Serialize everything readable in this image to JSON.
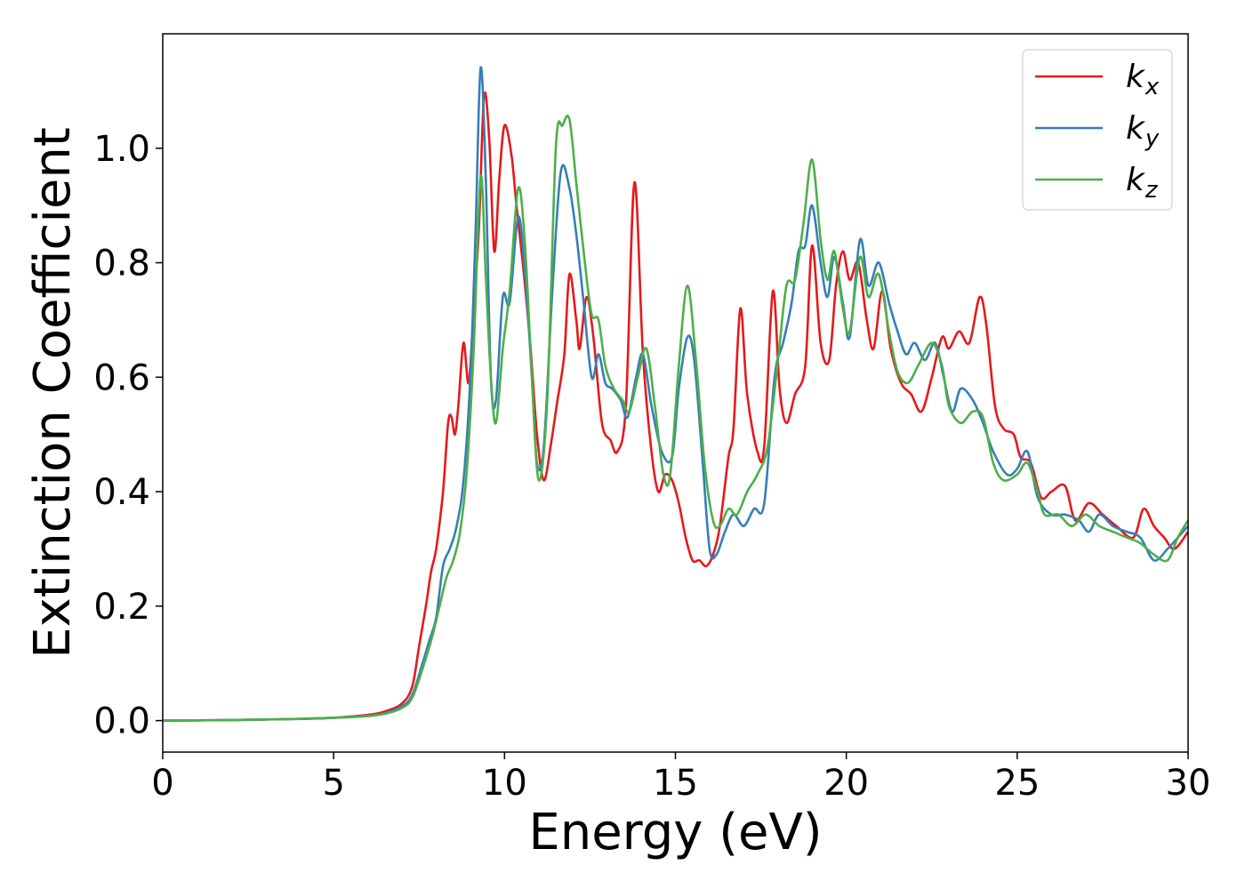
{
  "chart_data": {
    "type": "line",
    "xlabel": "Energy (eV)",
    "ylabel": "Extinction Coefficient",
    "xlim": [
      0,
      30
    ],
    "ylim": [
      -0.055,
      1.2
    ],
    "x_ticks": [
      "0",
      "5",
      "10",
      "15",
      "20",
      "25",
      "30"
    ],
    "x_tick_values": [
      0,
      5,
      10,
      15,
      20,
      25,
      30
    ],
    "y_ticks": [
      "0.0",
      "0.2",
      "0.4",
      "0.6",
      "0.8",
      "1.0"
    ],
    "y_tick_values": [
      0.0,
      0.2,
      0.4,
      0.6,
      0.8,
      1.0
    ],
    "grid": false,
    "legend_placement": "top-right",
    "series": [
      {
        "name": "k",
        "subscript": "x",
        "color": "#e41a1c",
        "points": [
          [
            0,
            0.0
          ],
          [
            1,
            0.0005
          ],
          [
            2,
            0.001
          ],
          [
            3,
            0.002
          ],
          [
            4,
            0.003
          ],
          [
            5,
            0.005
          ],
          [
            6,
            0.01
          ],
          [
            6.5,
            0.016
          ],
          [
            7,
            0.03
          ],
          [
            7.3,
            0.06
          ],
          [
            7.5,
            0.13
          ],
          [
            7.7,
            0.2
          ],
          [
            7.85,
            0.26
          ],
          [
            8.0,
            0.3
          ],
          [
            8.2,
            0.4
          ],
          [
            8.35,
            0.52
          ],
          [
            8.45,
            0.53
          ],
          [
            8.55,
            0.5
          ],
          [
            8.65,
            0.55
          ],
          [
            8.8,
            0.66
          ],
          [
            8.95,
            0.59
          ],
          [
            9.1,
            0.72
          ],
          [
            9.25,
            0.86
          ],
          [
            9.4,
            1.09
          ],
          [
            9.55,
            1.02
          ],
          [
            9.7,
            0.82
          ],
          [
            9.85,
            0.95
          ],
          [
            10.0,
            1.04
          ],
          [
            10.2,
            0.99
          ],
          [
            10.35,
            0.9
          ],
          [
            10.55,
            0.79
          ],
          [
            10.75,
            0.66
          ],
          [
            10.95,
            0.5
          ],
          [
            11.15,
            0.42
          ],
          [
            11.35,
            0.48
          ],
          [
            11.55,
            0.56
          ],
          [
            11.75,
            0.64
          ],
          [
            11.9,
            0.78
          ],
          [
            12.1,
            0.7
          ],
          [
            12.2,
            0.65
          ],
          [
            12.4,
            0.74
          ],
          [
            12.6,
            0.67
          ],
          [
            12.85,
            0.52
          ],
          [
            13.1,
            0.49
          ],
          [
            13.3,
            0.47
          ],
          [
            13.55,
            0.55
          ],
          [
            13.8,
            0.94
          ],
          [
            14.05,
            0.64
          ],
          [
            14.3,
            0.47
          ],
          [
            14.5,
            0.4
          ],
          [
            14.7,
            0.43
          ],
          [
            14.9,
            0.42
          ],
          [
            15.1,
            0.38
          ],
          [
            15.3,
            0.32
          ],
          [
            15.5,
            0.28
          ],
          [
            15.7,
            0.28
          ],
          [
            15.9,
            0.27
          ],
          [
            16.1,
            0.29
          ],
          [
            16.3,
            0.34
          ],
          [
            16.55,
            0.46
          ],
          [
            16.7,
            0.51
          ],
          [
            16.9,
            0.72
          ],
          [
            17.1,
            0.57
          ],
          [
            17.4,
            0.47
          ],
          [
            17.6,
            0.48
          ],
          [
            17.85,
            0.75
          ],
          [
            18.05,
            0.58
          ],
          [
            18.25,
            0.52
          ],
          [
            18.5,
            0.57
          ],
          [
            18.8,
            0.62
          ],
          [
            19.0,
            0.83
          ],
          [
            19.25,
            0.66
          ],
          [
            19.5,
            0.63
          ],
          [
            19.7,
            0.76
          ],
          [
            19.9,
            0.82
          ],
          [
            20.1,
            0.77
          ],
          [
            20.35,
            0.8
          ],
          [
            20.6,
            0.7
          ],
          [
            20.8,
            0.65
          ],
          [
            21.05,
            0.75
          ],
          [
            21.3,
            0.65
          ],
          [
            21.6,
            0.59
          ],
          [
            21.9,
            0.57
          ],
          [
            22.2,
            0.54
          ],
          [
            22.5,
            0.6
          ],
          [
            22.8,
            0.67
          ],
          [
            23.0,
            0.65
          ],
          [
            23.3,
            0.68
          ],
          [
            23.6,
            0.66
          ],
          [
            23.9,
            0.74
          ],
          [
            24.1,
            0.69
          ],
          [
            24.35,
            0.55
          ],
          [
            24.6,
            0.51
          ],
          [
            24.9,
            0.5
          ],
          [
            25.1,
            0.46
          ],
          [
            25.4,
            0.45
          ],
          [
            25.7,
            0.39
          ],
          [
            26.0,
            0.4
          ],
          [
            26.4,
            0.41
          ],
          [
            26.7,
            0.35
          ],
          [
            27.1,
            0.38
          ],
          [
            27.5,
            0.36
          ],
          [
            27.9,
            0.34
          ],
          [
            28.4,
            0.32
          ],
          [
            28.7,
            0.37
          ],
          [
            29.0,
            0.34
          ],
          [
            29.3,
            0.32
          ],
          [
            29.6,
            0.3
          ],
          [
            30.0,
            0.33
          ]
        ]
      },
      {
        "name": "k",
        "subscript": "y",
        "color": "#377eb8",
        "points": [
          [
            0,
            0.0
          ],
          [
            1,
            0.0005
          ],
          [
            2,
            0.001
          ],
          [
            3,
            0.002
          ],
          [
            4,
            0.003
          ],
          [
            5,
            0.005
          ],
          [
            6,
            0.008
          ],
          [
            6.5,
            0.013
          ],
          [
            7,
            0.025
          ],
          [
            7.3,
            0.045
          ],
          [
            7.6,
            0.1
          ],
          [
            7.8,
            0.14
          ],
          [
            8.0,
            0.18
          ],
          [
            8.2,
            0.27
          ],
          [
            8.4,
            0.3
          ],
          [
            8.6,
            0.34
          ],
          [
            8.8,
            0.42
          ],
          [
            9.0,
            0.6
          ],
          [
            9.15,
            0.85
          ],
          [
            9.3,
            1.14
          ],
          [
            9.45,
            0.95
          ],
          [
            9.6,
            0.6
          ],
          [
            9.75,
            0.56
          ],
          [
            9.95,
            0.74
          ],
          [
            10.15,
            0.73
          ],
          [
            10.4,
            0.88
          ],
          [
            10.6,
            0.78
          ],
          [
            10.8,
            0.6
          ],
          [
            10.95,
            0.45
          ],
          [
            11.15,
            0.48
          ],
          [
            11.4,
            0.75
          ],
          [
            11.65,
            0.96
          ],
          [
            11.9,
            0.93
          ],
          [
            12.1,
            0.85
          ],
          [
            12.3,
            0.74
          ],
          [
            12.55,
            0.6
          ],
          [
            12.75,
            0.64
          ],
          [
            12.95,
            0.59
          ],
          [
            13.15,
            0.58
          ],
          [
            13.4,
            0.56
          ],
          [
            13.6,
            0.53
          ],
          [
            13.85,
            0.6
          ],
          [
            14.05,
            0.64
          ],
          [
            14.3,
            0.55
          ],
          [
            14.6,
            0.47
          ],
          [
            14.9,
            0.46
          ],
          [
            15.1,
            0.58
          ],
          [
            15.35,
            0.67
          ],
          [
            15.55,
            0.63
          ],
          [
            15.8,
            0.45
          ],
          [
            16.0,
            0.3
          ],
          [
            16.2,
            0.29
          ],
          [
            16.45,
            0.33
          ],
          [
            16.7,
            0.36
          ],
          [
            17.0,
            0.34
          ],
          [
            17.3,
            0.37
          ],
          [
            17.6,
            0.38
          ],
          [
            17.9,
            0.6
          ],
          [
            18.15,
            0.66
          ],
          [
            18.4,
            0.73
          ],
          [
            18.6,
            0.82
          ],
          [
            18.8,
            0.83
          ],
          [
            19.0,
            0.9
          ],
          [
            19.25,
            0.8
          ],
          [
            19.45,
            0.74
          ],
          [
            19.65,
            0.81
          ],
          [
            19.9,
            0.73
          ],
          [
            20.1,
            0.67
          ],
          [
            20.4,
            0.84
          ],
          [
            20.65,
            0.76
          ],
          [
            20.95,
            0.8
          ],
          [
            21.25,
            0.73
          ],
          [
            21.5,
            0.68
          ],
          [
            21.75,
            0.64
          ],
          [
            22.0,
            0.66
          ],
          [
            22.3,
            0.63
          ],
          [
            22.6,
            0.66
          ],
          [
            22.85,
            0.6
          ],
          [
            23.1,
            0.54
          ],
          [
            23.35,
            0.58
          ],
          [
            23.7,
            0.56
          ],
          [
            24.0,
            0.52
          ],
          [
            24.3,
            0.47
          ],
          [
            24.7,
            0.43
          ],
          [
            25.0,
            0.44
          ],
          [
            25.3,
            0.47
          ],
          [
            25.6,
            0.39
          ],
          [
            26.0,
            0.36
          ],
          [
            26.4,
            0.36
          ],
          [
            26.8,
            0.35
          ],
          [
            27.1,
            0.33
          ],
          [
            27.4,
            0.36
          ],
          [
            27.8,
            0.34
          ],
          [
            28.2,
            0.33
          ],
          [
            28.6,
            0.32
          ],
          [
            29.0,
            0.28
          ],
          [
            29.4,
            0.3
          ],
          [
            29.7,
            0.32
          ],
          [
            30.0,
            0.34
          ]
        ]
      },
      {
        "name": "k",
        "subscript": "z",
        "color": "#4daf4a",
        "points": [
          [
            0,
            0.0
          ],
          [
            1,
            0.0005
          ],
          [
            2,
            0.001
          ],
          [
            3,
            0.002
          ],
          [
            4,
            0.003
          ],
          [
            5,
            0.005
          ],
          [
            6,
            0.008
          ],
          [
            6.5,
            0.012
          ],
          [
            7,
            0.022
          ],
          [
            7.3,
            0.04
          ],
          [
            7.6,
            0.09
          ],
          [
            7.9,
            0.15
          ],
          [
            8.1,
            0.2
          ],
          [
            8.3,
            0.25
          ],
          [
            8.5,
            0.28
          ],
          [
            8.7,
            0.33
          ],
          [
            8.9,
            0.44
          ],
          [
            9.1,
            0.65
          ],
          [
            9.3,
            0.95
          ],
          [
            9.45,
            0.78
          ],
          [
            9.6,
            0.6
          ],
          [
            9.75,
            0.52
          ],
          [
            9.95,
            0.65
          ],
          [
            10.15,
            0.75
          ],
          [
            10.4,
            0.93
          ],
          [
            10.6,
            0.83
          ],
          [
            10.8,
            0.6
          ],
          [
            11.0,
            0.42
          ],
          [
            11.25,
            0.56
          ],
          [
            11.5,
            1.0
          ],
          [
            11.7,
            1.04
          ],
          [
            11.9,
            1.05
          ],
          [
            12.1,
            0.94
          ],
          [
            12.35,
            0.8
          ],
          [
            12.55,
            0.71
          ],
          [
            12.75,
            0.7
          ],
          [
            12.95,
            0.62
          ],
          [
            13.2,
            0.58
          ],
          [
            13.45,
            0.56
          ],
          [
            13.65,
            0.54
          ],
          [
            13.9,
            0.6
          ],
          [
            14.15,
            0.65
          ],
          [
            14.4,
            0.55
          ],
          [
            14.65,
            0.43
          ],
          [
            14.85,
            0.43
          ],
          [
            15.1,
            0.62
          ],
          [
            15.35,
            0.76
          ],
          [
            15.6,
            0.63
          ],
          [
            15.85,
            0.45
          ],
          [
            16.1,
            0.35
          ],
          [
            16.3,
            0.34
          ],
          [
            16.55,
            0.37
          ],
          [
            16.8,
            0.36
          ],
          [
            17.1,
            0.4
          ],
          [
            17.4,
            0.43
          ],
          [
            17.7,
            0.48
          ],
          [
            18.0,
            0.63
          ],
          [
            18.25,
            0.76
          ],
          [
            18.5,
            0.77
          ],
          [
            18.75,
            0.87
          ],
          [
            19.0,
            0.98
          ],
          [
            19.25,
            0.84
          ],
          [
            19.45,
            0.77
          ],
          [
            19.65,
            0.82
          ],
          [
            19.9,
            0.72
          ],
          [
            20.1,
            0.68
          ],
          [
            20.4,
            0.81
          ],
          [
            20.65,
            0.74
          ],
          [
            20.95,
            0.78
          ],
          [
            21.25,
            0.68
          ],
          [
            21.5,
            0.61
          ],
          [
            21.8,
            0.59
          ],
          [
            22.1,
            0.62
          ],
          [
            22.5,
            0.66
          ],
          [
            22.8,
            0.62
          ],
          [
            23.0,
            0.55
          ],
          [
            23.35,
            0.52
          ],
          [
            23.7,
            0.54
          ],
          [
            24.0,
            0.53
          ],
          [
            24.3,
            0.45
          ],
          [
            24.6,
            0.42
          ],
          [
            25.0,
            0.43
          ],
          [
            25.3,
            0.45
          ],
          [
            25.6,
            0.4
          ],
          [
            25.8,
            0.36
          ],
          [
            26.2,
            0.36
          ],
          [
            26.6,
            0.34
          ],
          [
            27.0,
            0.36
          ],
          [
            27.4,
            0.34
          ],
          [
            27.8,
            0.33
          ],
          [
            28.2,
            0.32
          ],
          [
            28.6,
            0.31
          ],
          [
            29.0,
            0.29
          ],
          [
            29.4,
            0.28
          ],
          [
            29.7,
            0.32
          ],
          [
            30.0,
            0.35
          ]
        ]
      }
    ]
  }
}
